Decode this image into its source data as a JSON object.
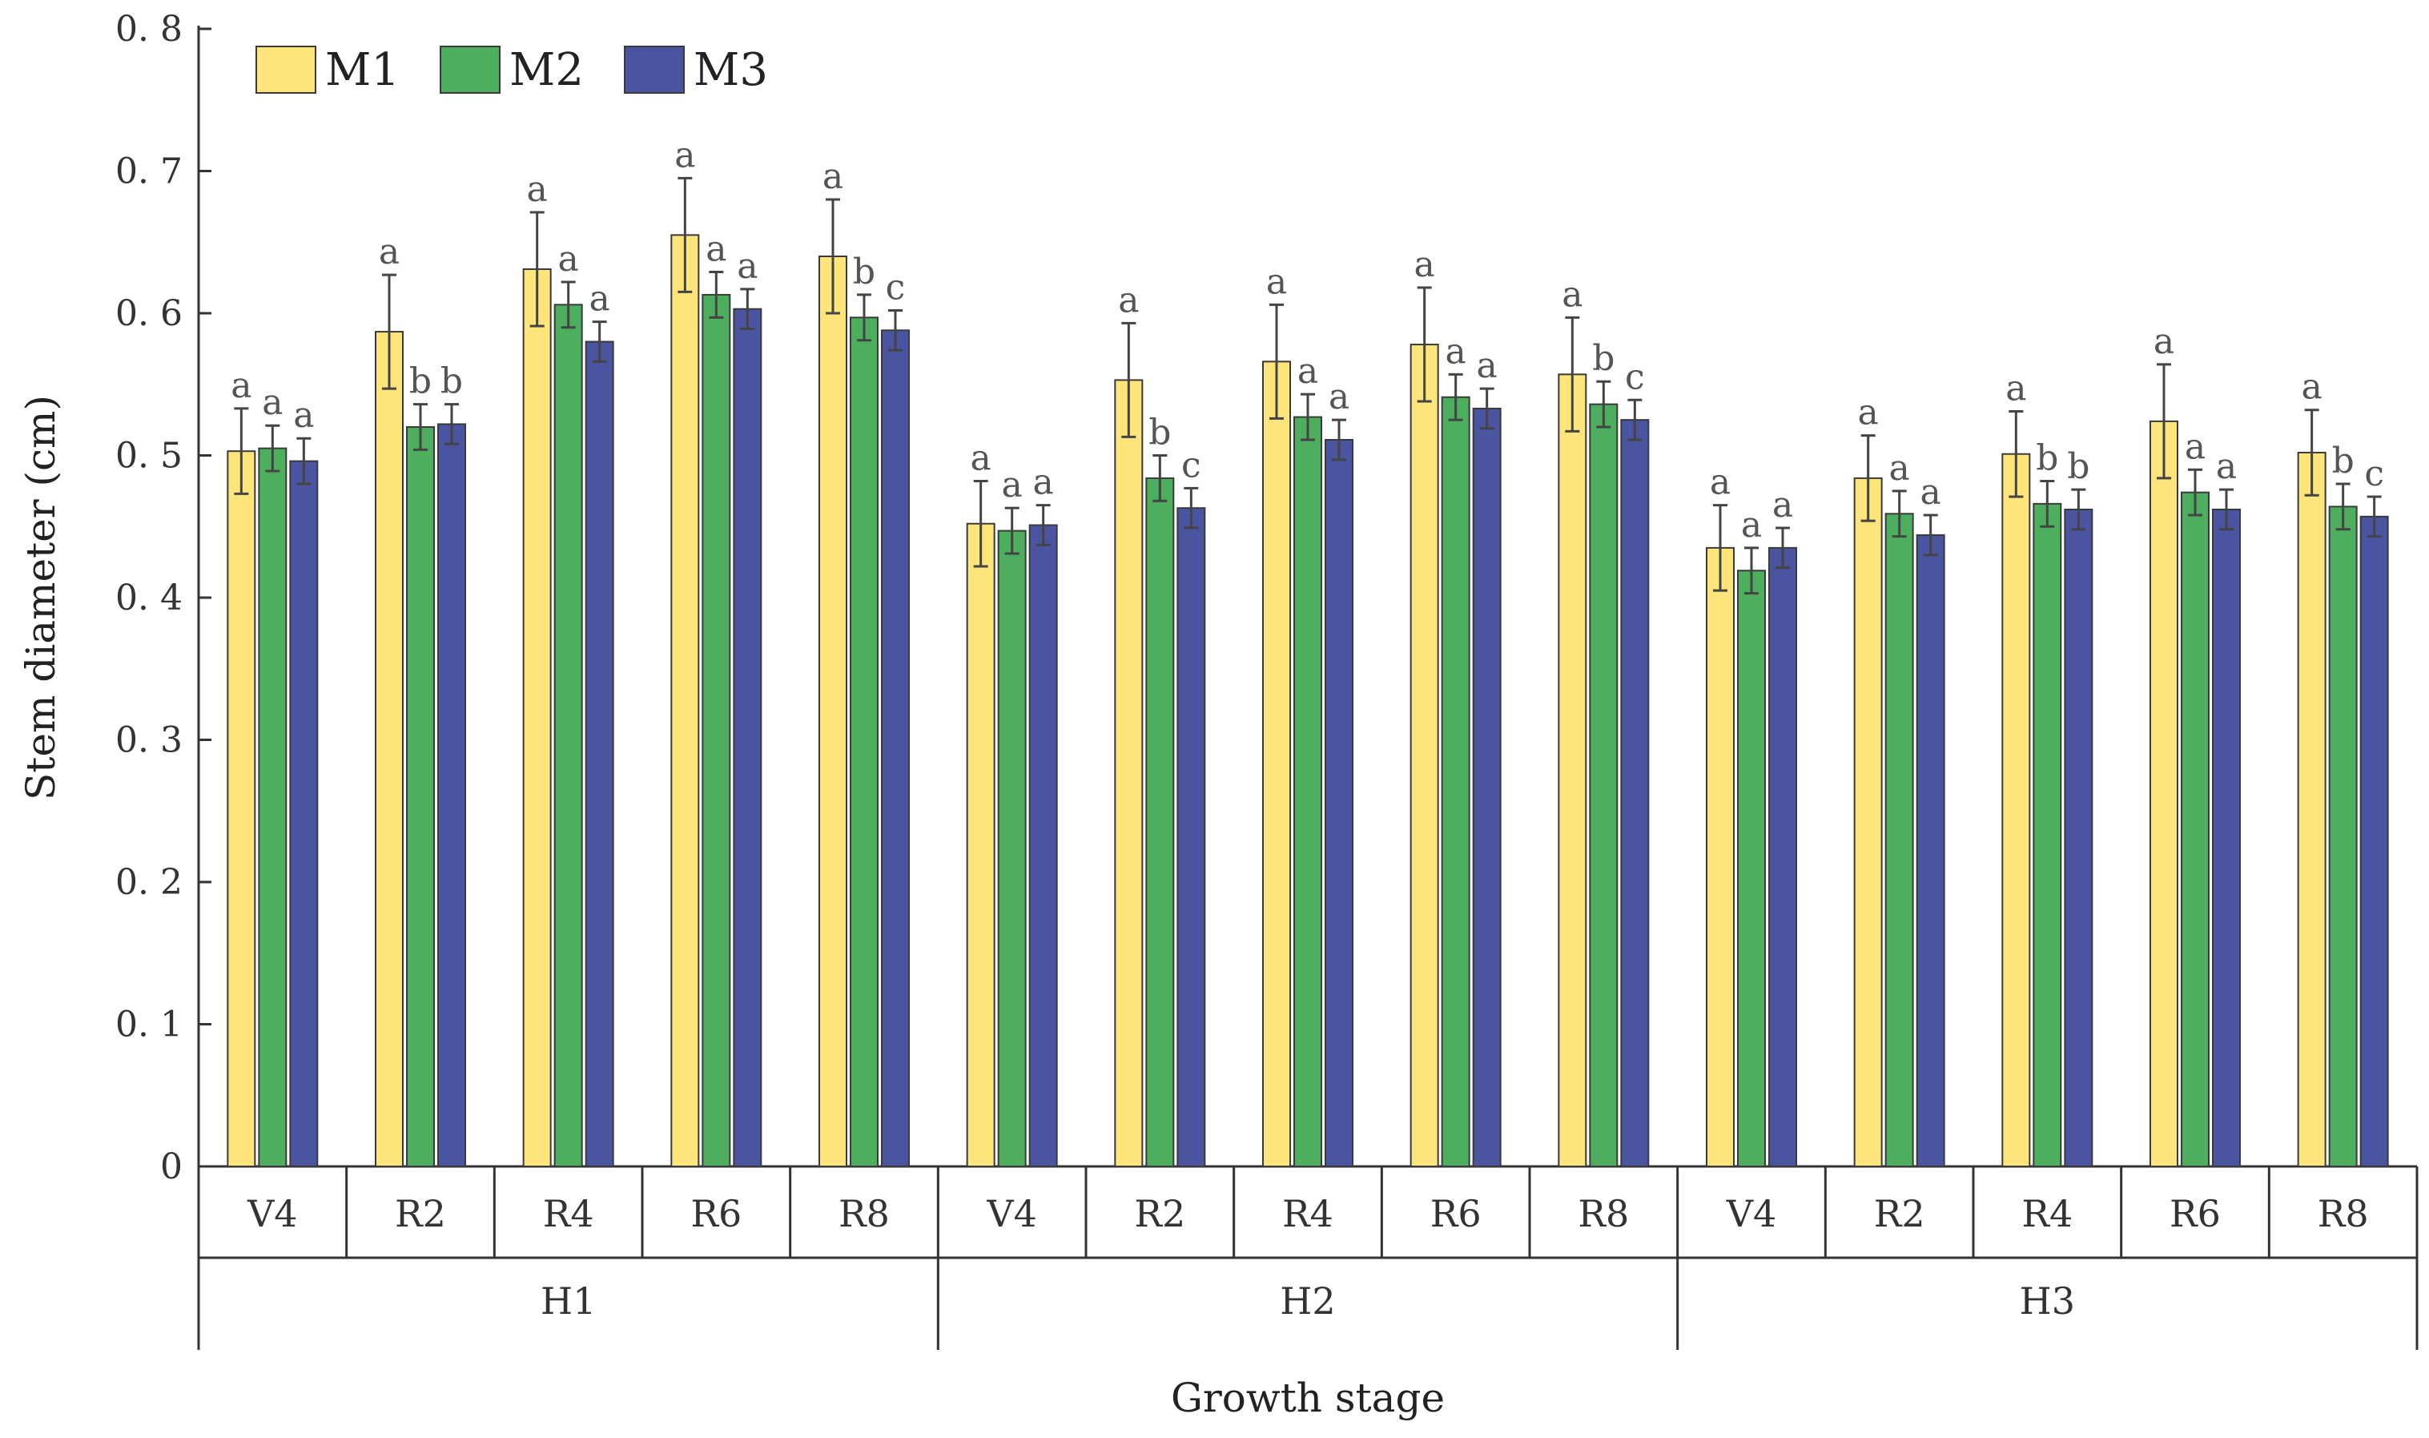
{
  "chart_data": {
    "type": "bar",
    "title": "",
    "ylabel": "Stem diameter (cm)",
    "xlabel": "Growth stage",
    "ylim": [
      0,
      0.8
    ],
    "yticks": [
      0,
      0.1,
      0.2,
      0.3,
      0.4,
      0.5,
      0.6,
      0.7,
      0.8
    ],
    "ytick_labels": [
      "0",
      "0. 1",
      "0. 2",
      "0. 3",
      "0. 4",
      "0. 5",
      "0. 6",
      "0. 7",
      "0. 8"
    ],
    "legend_position": "top-left",
    "groups": [
      {
        "name": "H1",
        "stages": [
          "V4",
          "R2",
          "R4",
          "R6",
          "R8"
        ]
      },
      {
        "name": "H2",
        "stages": [
          "V4",
          "R2",
          "R4",
          "R6",
          "R8"
        ]
      },
      {
        "name": "H3",
        "stages": [
          "V4",
          "R2",
          "R4",
          "R6",
          "R8"
        ]
      }
    ],
    "categories": [
      "H1-V4",
      "H1-R2",
      "H1-R4",
      "H1-R6",
      "H1-R8",
      "H2-V4",
      "H2-R2",
      "H2-R4",
      "H2-R6",
      "H2-R8",
      "H3-V4",
      "H3-R2",
      "H3-R4",
      "H3-R6",
      "H3-R8"
    ],
    "series": [
      {
        "name": "M1",
        "color": "#FDE57B",
        "values": [
          0.503,
          0.587,
          0.631,
          0.655,
          0.64,
          0.452,
          0.553,
          0.566,
          0.578,
          0.557,
          0.435,
          0.484,
          0.501,
          0.524,
          0.502
        ],
        "errors": [
          0.03,
          0.04,
          0.04,
          0.04,
          0.04,
          0.03,
          0.04,
          0.04,
          0.04,
          0.04,
          0.03,
          0.03,
          0.03,
          0.04,
          0.03
        ],
        "letters": [
          "a",
          "a",
          "a",
          "a",
          "a",
          "a",
          "a",
          "a",
          "a",
          "a",
          "a",
          "a",
          "a",
          "a",
          "a"
        ]
      },
      {
        "name": "M2",
        "color": "#4DAE5E",
        "values": [
          0.505,
          0.52,
          0.606,
          0.613,
          0.597,
          0.447,
          0.484,
          0.527,
          0.541,
          0.536,
          0.419,
          0.459,
          0.466,
          0.474,
          0.464
        ],
        "errors": [
          0.016,
          0.016,
          0.016,
          0.016,
          0.016,
          0.016,
          0.016,
          0.016,
          0.016,
          0.016,
          0.016,
          0.016,
          0.016,
          0.016,
          0.016
        ],
        "letters": [
          "a",
          "b",
          "a",
          "a",
          "b",
          "a",
          "b",
          "a",
          "a",
          "b",
          "a",
          "a",
          "b",
          "a",
          "b"
        ]
      },
      {
        "name": "M3",
        "color": "#4A54A1",
        "values": [
          0.496,
          0.522,
          0.58,
          0.603,
          0.588,
          0.451,
          0.463,
          0.511,
          0.533,
          0.525,
          0.435,
          0.444,
          0.462,
          0.462,
          0.457
        ],
        "errors": [
          0.016,
          0.014,
          0.014,
          0.014,
          0.014,
          0.014,
          0.014,
          0.014,
          0.014,
          0.014,
          0.014,
          0.014,
          0.014,
          0.014,
          0.014
        ],
        "letters": [
          "a",
          "b",
          "a",
          "a",
          "c",
          "a",
          "c",
          "a",
          "a",
          "c",
          "a",
          "a",
          "b",
          "a",
          "c"
        ]
      }
    ]
  }
}
